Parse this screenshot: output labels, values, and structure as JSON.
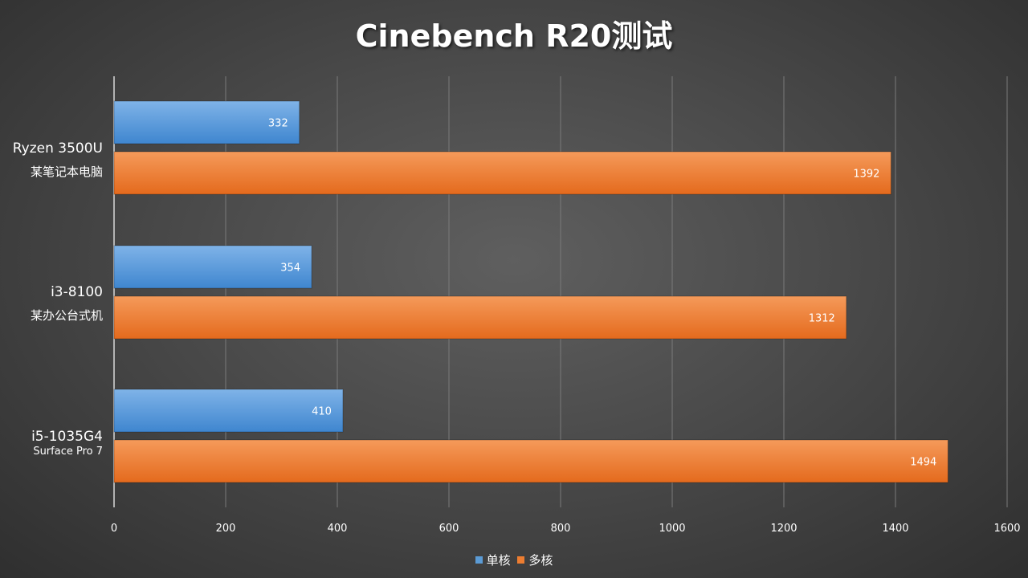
{
  "colors": {
    "single": "#5b9bd5",
    "multi": "#ed7d31"
  },
  "chart_data": {
    "type": "bar",
    "orientation": "horizontal",
    "title": "Cinebench R20测试",
    "categories": [
      {
        "line1": "Ryzen 3500U",
        "line2": "某笔记本电脑"
      },
      {
        "line1": "i3-8100",
        "line2": "某办公台式机"
      },
      {
        "line1": "i5-1035G4",
        "line2": "Surface Pro 7"
      }
    ],
    "series": [
      {
        "name": "单核",
        "values": [
          332,
          354,
          410
        ]
      },
      {
        "name": "多核",
        "values": [
          1392,
          1312,
          1494
        ]
      }
    ],
    "xlim": [
      0,
      1600
    ],
    "xticks": [
      0,
      200,
      400,
      600,
      800,
      1000,
      1200,
      1400,
      1600
    ],
    "grid": true,
    "legend_position": "bottom"
  }
}
